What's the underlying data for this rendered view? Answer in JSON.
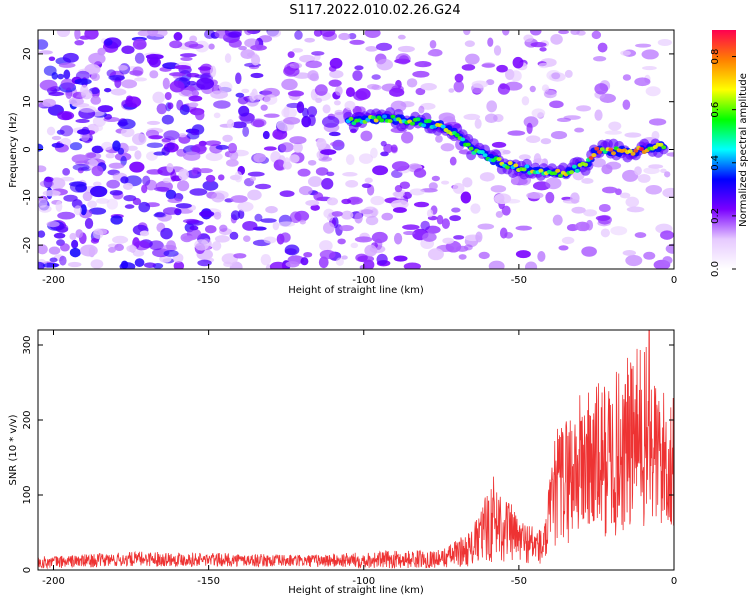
{
  "title": "S117.2022.010.02.26.G24",
  "chart_data": [
    {
      "type": "heatmap",
      "xlabel": "Height of straight line (km)",
      "ylabel": "Frequency (Hz)",
      "xlim": [
        -205,
        0
      ],
      "ylim": [
        -25,
        25
      ],
      "x_ticks": [
        -200,
        -150,
        -100,
        -50,
        0
      ],
      "y_ticks": [
        -20,
        -10,
        0,
        10,
        20
      ],
      "colorbar": {
        "label": "Normalized spectral amplitude",
        "range": [
          0,
          0.9
        ],
        "ticks": [
          "0.0",
          "0.2",
          "0.4",
          "0.6",
          "0.8"
        ],
        "colors": [
          "#ffffff",
          "#e6c9ff",
          "#7a00ff",
          "#0000ff",
          "#00ffff",
          "#00ff00",
          "#ffff00",
          "#ff8000",
          "#ff0050"
        ]
      },
      "ridge": {
        "description_points": [
          {
            "x": -105,
            "y": 6
          },
          {
            "x": -95,
            "y": 6.5
          },
          {
            "x": -85,
            "y": 6
          },
          {
            "x": -75,
            "y": 5
          },
          {
            "x": -70,
            "y": 3
          },
          {
            "x": -65,
            "y": 0
          },
          {
            "x": -55,
            "y": -3
          },
          {
            "x": -45,
            "y": -4.5
          },
          {
            "x": -35,
            "y": -5
          },
          {
            "x": -28,
            "y": -3
          },
          {
            "x": -25,
            "y": 0
          },
          {
            "x": -15,
            "y": -0.5
          },
          {
            "x": -8,
            "y": 0
          },
          {
            "x": -3,
            "y": 1
          }
        ]
      }
    },
    {
      "type": "line",
      "xlabel": "Height of straight line (km)",
      "ylabel": "SNR (10 * v/v)",
      "xlim": [
        -205,
        0
      ],
      "ylim": [
        0,
        320
      ],
      "x_ticks": [
        -200,
        -150,
        -100,
        -50,
        0
      ],
      "y_ticks": [
        0,
        100,
        200,
        300
      ],
      "series": [
        {
          "color": "#ee3333",
          "envelope": [
            {
              "x": -205,
              "mean": 10,
              "spread": 8
            },
            {
              "x": -170,
              "mean": 15,
              "spread": 10
            },
            {
              "x": -120,
              "mean": 12,
              "spread": 8
            },
            {
              "x": -90,
              "mean": 14,
              "spread": 12
            },
            {
              "x": -75,
              "mean": 15,
              "spread": 12
            },
            {
              "x": -65,
              "mean": 30,
              "spread": 25
            },
            {
              "x": -58,
              "mean": 70,
              "spread": 60
            },
            {
              "x": -50,
              "mean": 40,
              "spread": 30
            },
            {
              "x": -42,
              "mean": 30,
              "spread": 25
            },
            {
              "x": -38,
              "mean": 110,
              "spread": 80
            },
            {
              "x": -30,
              "mean": 140,
              "spread": 100
            },
            {
              "x": -20,
              "mean": 150,
              "spread": 110
            },
            {
              "x": -10,
              "mean": 180,
              "spread": 130
            },
            {
              "x": -5,
              "mean": 150,
              "spread": 100
            },
            {
              "x": 0,
              "mean": 140,
              "spread": 90
            }
          ],
          "peak": {
            "x": -8,
            "y": 325
          }
        }
      ]
    }
  ]
}
